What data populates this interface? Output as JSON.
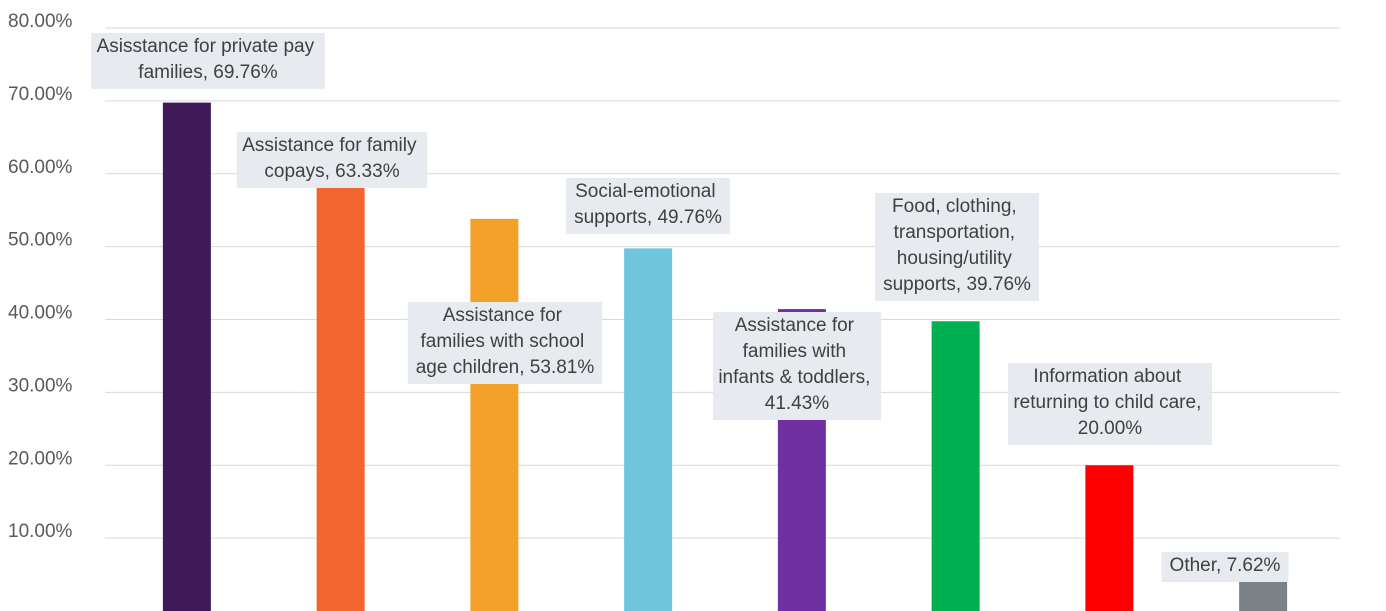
{
  "chart_data": {
    "type": "bar",
    "values": [
      69.76,
      63.33,
      53.81,
      49.76,
      41.43,
      39.76,
      20.0,
      7.62
    ],
    "value_labels": [
      "Asisstance for private pay families, 69.76%",
      "Assistance for family copays, 63.33%",
      "Assistance for families with school age children, 53.81%",
      "Social-emotional supports, 49.76%",
      "Assistance for families with infants & toddlers, 41.43%",
      "Food, clothing, transportation, housing/utility supports, 39.76%",
      "Information about returning to child care, 20.00%",
      "Other, 7.62%"
    ],
    "colors": [
      "#3f1a56",
      "#f26430",
      "#f4a12a",
      "#6fc5dc",
      "#7030a0",
      "#00b050",
      "#ff0000",
      "#7a8287"
    ],
    "ylim": [
      0,
      80
    ],
    "yticks": [
      {
        "value": 10,
        "label": "10.00%"
      },
      {
        "value": 20,
        "label": "20.00%"
      },
      {
        "value": 30,
        "label": "30.00%"
      },
      {
        "value": 40,
        "label": "40.00%"
      },
      {
        "value": 50,
        "label": "50.00%"
      },
      {
        "value": 60,
        "label": "60.00%"
      },
      {
        "value": 70,
        "label": "70.00%"
      },
      {
        "value": 80,
        "label": "80.00%"
      }
    ],
    "grid": true
  }
}
